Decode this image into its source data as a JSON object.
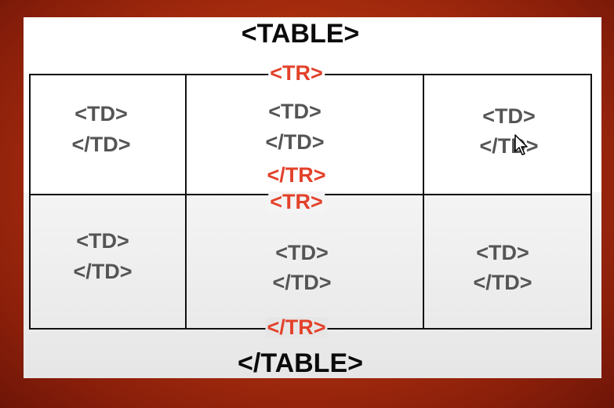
{
  "diagram": {
    "table_open": "<TABLE>",
    "table_close": "</TABLE>",
    "rows": [
      {
        "tr_open": "<TR>",
        "tr_close": "</TR>",
        "cells": [
          {
            "open": "<TD>",
            "close": "</TD>"
          },
          {
            "open": "<TD>",
            "close": "</TD>"
          },
          {
            "open": "<TD>",
            "close": "</TD>"
          }
        ]
      },
      {
        "tr_open": "<TR>",
        "tr_close": "</TR>",
        "cells": [
          {
            "open": "<TD>",
            "close": "</TD>"
          },
          {
            "open": "<TD>",
            "close": "</TD>"
          },
          {
            "open": "<TD>",
            "close": "</TD>"
          }
        ]
      }
    ]
  },
  "colors": {
    "background": "#b0300f",
    "tr_label": "#e3412a",
    "td_label": "#555555",
    "table_label": "#0b0b0b"
  }
}
